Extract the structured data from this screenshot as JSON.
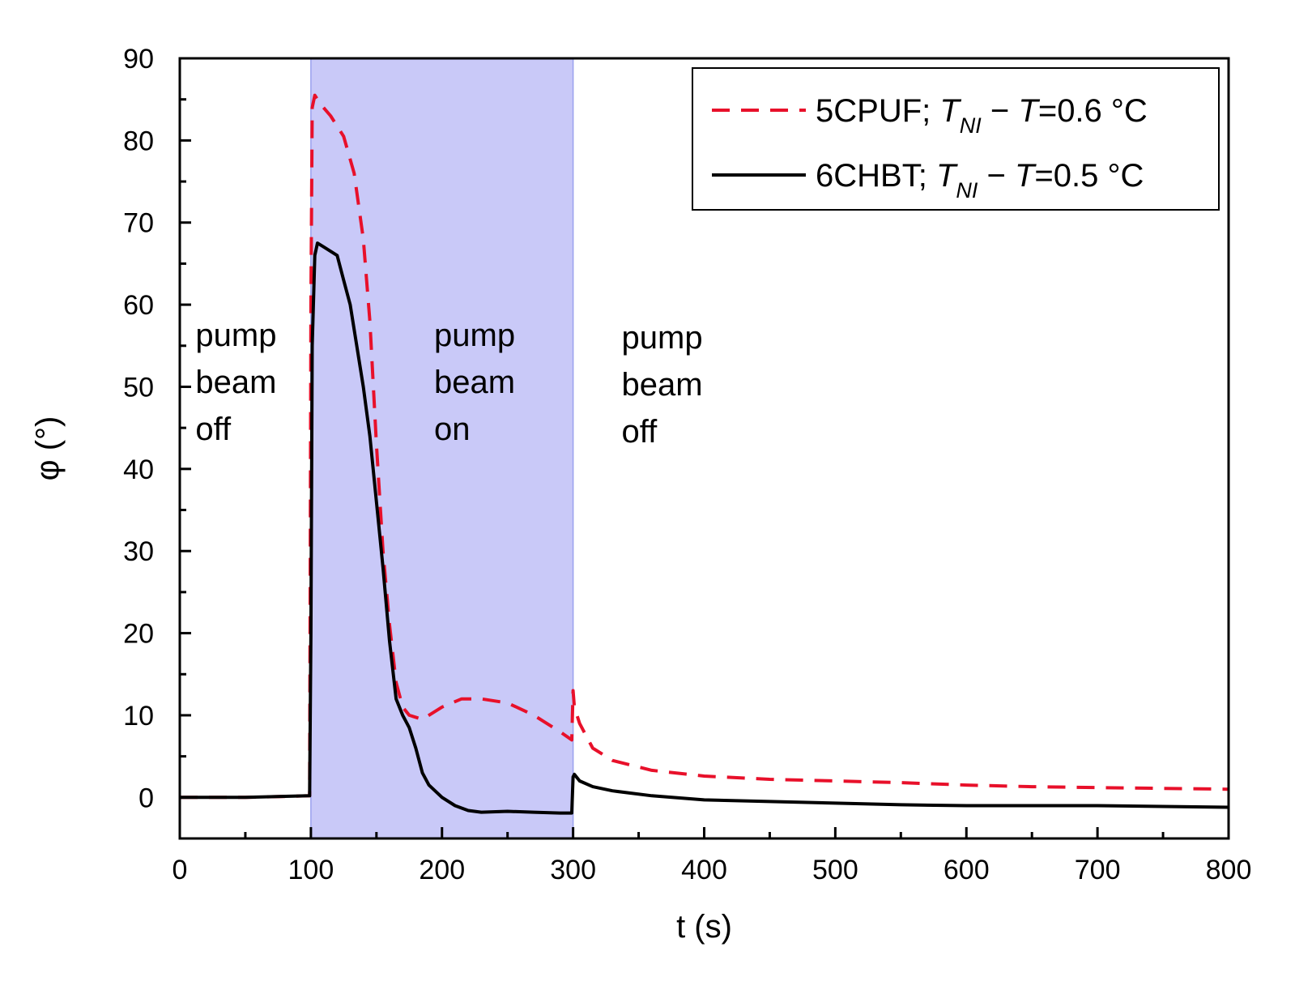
{
  "chart_data": {
    "type": "line",
    "title": "",
    "xlabel": "t (s)",
    "ylabel": "φ (°)",
    "xlim": [
      0,
      800
    ],
    "ylim": [
      -5,
      90
    ],
    "xticks": [
      0,
      100,
      200,
      300,
      400,
      500,
      600,
      700,
      800
    ],
    "yticks": [
      0,
      10,
      20,
      30,
      40,
      50,
      60,
      70,
      80,
      90
    ],
    "grid": false,
    "legend_position": "top-right",
    "shaded_region": {
      "x_from": 100,
      "x_to": 300,
      "color": "#c9c9f8",
      "edge_color": "#9aa0ee"
    },
    "annotations": [
      {
        "lines": [
          "pump",
          "beam",
          "off"
        ],
        "x": 12,
        "y": 55
      },
      {
        "lines": [
          "pump",
          "beam",
          "on"
        ],
        "x": 194,
        "y": 55
      },
      {
        "lines": [
          "pump",
          "beam",
          "off"
        ],
        "x": 337,
        "y": 54.7
      }
    ],
    "series": [
      {
        "name": "5CPUF",
        "legend_label": {
          "prefix": "5CPUF;",
          "T": "T",
          "sub": "NI",
          "mid": " − ",
          "T2": "T",
          "value": "=0.6 °C"
        },
        "color": "#e8102a",
        "style": "dashed",
        "x": [
          0,
          50,
          99,
          100,
          101,
          103,
          107,
          115,
          125,
          133,
          140,
          145,
          150,
          155,
          160,
          165,
          170,
          175,
          185,
          200,
          215,
          230,
          250,
          270,
          290,
          299,
          300,
          301,
          305,
          315,
          330,
          360,
          400,
          450,
          500,
          550,
          600,
          650,
          700,
          750,
          800
        ],
        "y": [
          0,
          0,
          0.2,
          60,
          84,
          85.5,
          84.5,
          83,
          80.5,
          76,
          68,
          58,
          43,
          30,
          21,
          14,
          11,
          10,
          9.5,
          11,
          12,
          12,
          11.5,
          10,
          8,
          7,
          13,
          11,
          9,
          6,
          4.5,
          3.3,
          2.6,
          2.2,
          2.0,
          1.8,
          1.5,
          1.3,
          1.2,
          1.1,
          1.0
        ]
      },
      {
        "name": "6CHBT",
        "legend_label": {
          "prefix": "6CHBT;",
          "T": "T",
          "sub": "NI",
          "mid": " − ",
          "T2": "T",
          "value": "=0.5 °C"
        },
        "color": "#000000",
        "style": "solid",
        "x": [
          0,
          50,
          99,
          100,
          101,
          103,
          105,
          110,
          115,
          120,
          125,
          130,
          135,
          140,
          145,
          150,
          155,
          160,
          165,
          170,
          175,
          180,
          185,
          190,
          200,
          210,
          220,
          230,
          250,
          270,
          290,
          299,
          300,
          301,
          305,
          315,
          330,
          360,
          400,
          450,
          500,
          550,
          600,
          650,
          700,
          750,
          800
        ],
        "y": [
          0,
          0,
          0.2,
          20,
          55,
          66,
          67.5,
          67,
          66.5,
          66,
          63,
          60,
          55,
          50,
          44,
          36,
          28,
          19,
          12,
          10,
          8.5,
          6,
          3,
          1.5,
          0,
          -1,
          -1.6,
          -1.8,
          -1.7,
          -1.8,
          -1.9,
          -1.9,
          2.5,
          2.8,
          2,
          1.3,
          0.8,
          0.2,
          -0.3,
          -0.5,
          -0.7,
          -0.9,
          -1.0,
          -1.0,
          -1.0,
          -1.1,
          -1.2
        ]
      }
    ]
  }
}
